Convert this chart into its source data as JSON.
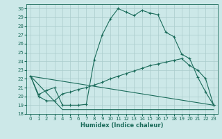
{
  "xlabel": "Humidex (Indice chaleur)",
  "xlim": [
    -0.5,
    23.5
  ],
  "ylim": [
    18,
    30.5
  ],
  "yticks": [
    18,
    19,
    20,
    21,
    22,
    23,
    24,
    25,
    26,
    27,
    28,
    29,
    30
  ],
  "xticks": [
    0,
    1,
    2,
    3,
    4,
    5,
    6,
    7,
    8,
    9,
    10,
    11,
    12,
    13,
    14,
    15,
    16,
    17,
    18,
    19,
    20,
    21,
    22,
    23
  ],
  "bg_color": "#cce8e8",
  "line_color": "#1a6b5a",
  "grid_color": "#aacccc",
  "line1_x": [
    0,
    1,
    2,
    3,
    4,
    5,
    6,
    7,
    8,
    9,
    10,
    11,
    12,
    13,
    14,
    15,
    16,
    17,
    18,
    19,
    20,
    21,
    22,
    23
  ],
  "line1_y": [
    22.3,
    20.2,
    20.7,
    21.0,
    19.0,
    19.0,
    19.0,
    19.1,
    24.2,
    27.0,
    28.8,
    30.0,
    29.6,
    29.2,
    29.8,
    29.5,
    29.3,
    27.3,
    26.8,
    24.8,
    24.3,
    22.2,
    20.5,
    19.0
  ],
  "line2_x": [
    0,
    1,
    2,
    3,
    4,
    5,
    6,
    7,
    8,
    9,
    10,
    11,
    12,
    13,
    14,
    15,
    16,
    17,
    18,
    19,
    20,
    21,
    22,
    23
  ],
  "line2_y": [
    22.3,
    20.0,
    19.5,
    19.5,
    20.3,
    20.5,
    20.8,
    21.0,
    21.3,
    21.6,
    22.0,
    22.3,
    22.6,
    22.9,
    23.2,
    23.5,
    23.7,
    23.9,
    24.1,
    24.3,
    23.5,
    23.0,
    22.0,
    19.0
  ],
  "line3_x": [
    0,
    4,
    18,
    23
  ],
  "line3_y": [
    22.3,
    18.5,
    18.5,
    18.5
  ],
  "line4_x": [
    0,
    23
  ],
  "line4_y": [
    22.3,
    19.0
  ]
}
